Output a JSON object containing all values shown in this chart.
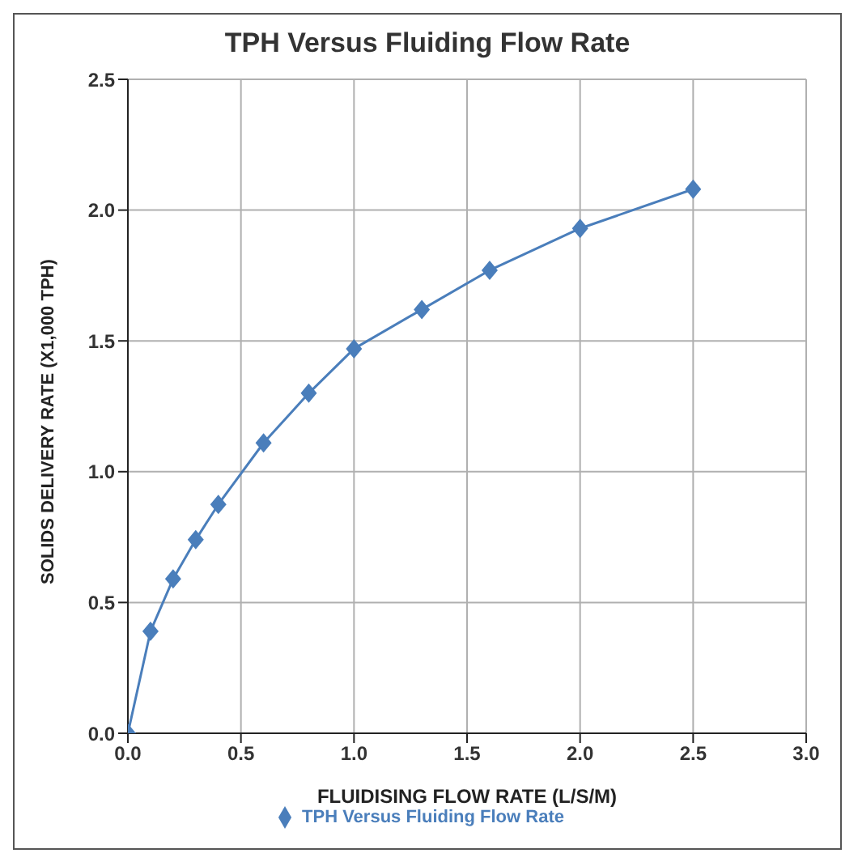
{
  "chart_data": {
    "type": "line",
    "title": "TPH Versus Fluiding Flow Rate",
    "xlabel": "FLUIDISING FLOW RATE (L/S/M)",
    "ylabel": "SOLIDS DELIVERY RATE (X1,000 TPH)",
    "x": [
      0,
      0.1,
      0.2,
      0.3,
      0.4,
      0.6,
      0.8,
      1.0,
      1.3,
      1.6,
      2.0,
      2.5
    ],
    "series": [
      {
        "name": "TPH Versus Fluiding Flow Rate",
        "color": "#4a7ebb",
        "values": [
          0,
          0.39,
          0.59,
          0.74,
          0.875,
          1.11,
          1.3,
          1.47,
          1.62,
          1.77,
          1.93,
          2.08
        ]
      }
    ],
    "xlim": [
      0,
      3
    ],
    "xticks": [
      {
        "value": 0,
        "label": "0.0"
      },
      0.5,
      {
        "value": 1,
        "label": "1.0"
      },
      1.5,
      {
        "value": 2,
        "label": "2.0"
      },
      2.5,
      {
        "value": 3,
        "label": "3.0"
      }
    ],
    "ylim": [
      0,
      2.5
    ],
    "yticks": [
      {
        "value": 0,
        "label": "0.0"
      },
      0.5,
      {
        "value": 1,
        "label": "1.0"
      },
      1.5,
      {
        "value": 2,
        "label": "2.0"
      },
      2.5
    ],
    "grid": true,
    "legend": "bottom",
    "marker": "diamond",
    "line_style": "solid"
  }
}
